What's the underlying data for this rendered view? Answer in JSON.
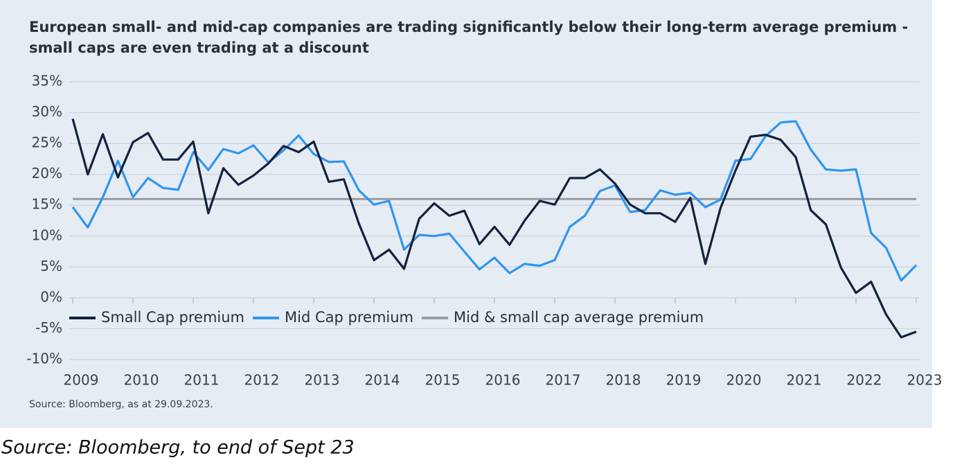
{
  "chart_data": {
    "type": "line",
    "title": [
      "European small- and mid-cap companies are trading significantly below their long-term average premium -",
      "small caps are even trading at a discount"
    ],
    "source": "Source: Bloomberg, as at 29.09.2023.",
    "caption": "Source: Bloomberg, to end of Sept 23",
    "categories": [
      "2009",
      null,
      null,
      null,
      "2010",
      null,
      null,
      null,
      "2011",
      null,
      null,
      null,
      "2012",
      null,
      null,
      null,
      "2013",
      null,
      null,
      null,
      "2014",
      null,
      null,
      null,
      "2015",
      null,
      null,
      null,
      "2016",
      null,
      null,
      null,
      "2017",
      null,
      null,
      null,
      "2018",
      null,
      null,
      null,
      "2019",
      null,
      null,
      null,
      "2020",
      null,
      null,
      null,
      "2021",
      null,
      null,
      null,
      "2022",
      null,
      null,
      null,
      "2023"
    ],
    "series": [
      {
        "name": "Small Cap premium",
        "color": "#14213d",
        "values": [
          29,
          20,
          26.5,
          19.5,
          25.2,
          26.7,
          22.4,
          22.4,
          25.3,
          13.7,
          21,
          18.3,
          19.8,
          21.8,
          24.6,
          23.6,
          25.3,
          18.8,
          19.2,
          12,
          6.1,
          7.8,
          4.7,
          12.8,
          15.3,
          13.3,
          14.1,
          8.7,
          11.5,
          8.6,
          12.5,
          15.7,
          15.1,
          19.4,
          19.4,
          20.8,
          18.5,
          15.1,
          13.7,
          13.7,
          12.3,
          16.2,
          5.5,
          14.5,
          20.6,
          26.1,
          26.4,
          25.6,
          22.8,
          14.2,
          11.9,
          4.9,
          0.8,
          2.6,
          -2.7,
          -6.4,
          -5.5
        ]
      },
      {
        "name": "Mid Cap premium",
        "color": "#2e96f0",
        "values": [
          14.7,
          11.4,
          16.3,
          22.2,
          16.3,
          19.4,
          17.8,
          17.5,
          23.6,
          20.7,
          24.1,
          23.4,
          24.7,
          21.9,
          23.9,
          26.3,
          23.3,
          22,
          22.1,
          17.4,
          15.1,
          15.7,
          7.8,
          10.2,
          10,
          10.4,
          7.5,
          4.6,
          6.5,
          4,
          5.5,
          5.2,
          6.1,
          11.5,
          13.3,
          17.3,
          18.2,
          13.9,
          14.2,
          17.4,
          16.7,
          17,
          14.7,
          15.9,
          22.2,
          22.5,
          26.2,
          28.4,
          28.6,
          24,
          20.8,
          20.6,
          20.8,
          10.5,
          8.1,
          2.8,
          5.3
        ]
      },
      {
        "name": "Mid & small cap average premium",
        "color": "#9b9fa4",
        "values": [
          16,
          16,
          16,
          16,
          16,
          16,
          16,
          16,
          16,
          16,
          16,
          16,
          16,
          16,
          16,
          16,
          16,
          16,
          16,
          16,
          16,
          16,
          16,
          16,
          16,
          16,
          16,
          16,
          16,
          16,
          16,
          16,
          16,
          16,
          16,
          16,
          16,
          16,
          16,
          16,
          16,
          16,
          16,
          16,
          16,
          16,
          16,
          16,
          16,
          16,
          16,
          16,
          16,
          16,
          16,
          16,
          16
        ]
      }
    ],
    "ylim": [
      -10,
      35
    ],
    "yticks": [
      {
        "value": -10,
        "label": "-10%"
      },
      {
        "value": -5,
        "label": "-5%"
      },
      {
        "value": 0,
        "label": "0%"
      },
      {
        "value": 5,
        "label": "5%"
      },
      {
        "value": 10,
        "label": "10%"
      },
      {
        "value": 15,
        "label": "15%"
      },
      {
        "value": 20,
        "label": "20%"
      },
      {
        "value": 25,
        "label": "25%"
      },
      {
        "value": 30,
        "label": "30%"
      },
      {
        "value": 35,
        "label": "35%"
      }
    ],
    "grid": true,
    "legend": "bottom-left"
  }
}
